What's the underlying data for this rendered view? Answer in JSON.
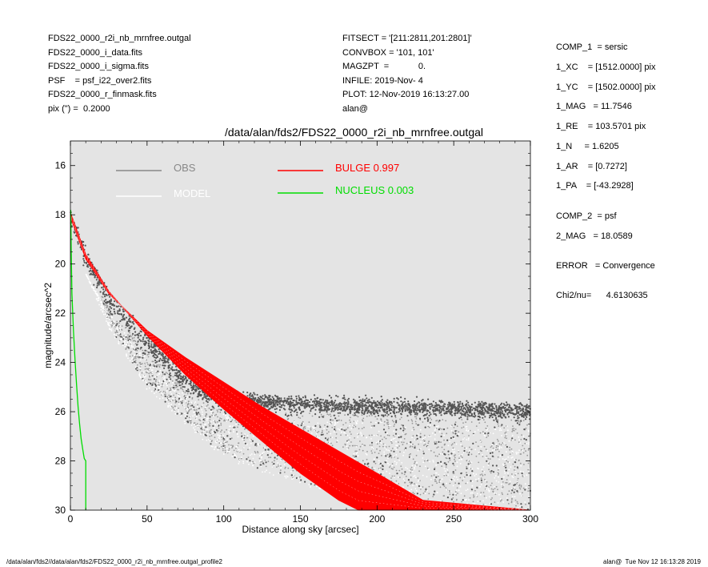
{
  "header_left": [
    "FDS22_0000_r2i_nb_mrnfree.outgal",
    "FDS22_0000_i_data.fits",
    "FDS22_0000_i_sigma.fits",
    "PSF    = psf_i22_over2.fits",
    "FDS22_0000_r_finmask.fits",
    "pix (\") =  0.2000"
  ],
  "header_mid": [
    "FITSECT = '[211:2811,201:2801]'",
    "CONVBOX = '101, 101'",
    "MAGZPT  =            0.",
    "INFILE: 2019-Nov- 4",
    "PLOT: 12-Nov-2019 16:13:27.00",
    "alan@"
  ],
  "right_params": {
    "comp1": "COMP_1  = sersic",
    "xc": "1_XC    = [1512.0000] pix",
    "yc": "1_YC    = [1502.0000] pix",
    "mag": "1_MAG   = 11.7546",
    "re": "1_RE    = 103.5701 pix",
    "n": "1_N     = 1.6205",
    "ar": "1_AR    = [0.7272]",
    "pa": "1_PA    = [-43.2928]",
    "comp2": "COMP_2  = psf",
    "mag2": "2_MAG   = 18.0589",
    "error": "ERROR   = Convergence",
    "chi2": "Chi2/nu=      4.6130635"
  },
  "footer_left": "/data/alan/fds2//data/alan/fds2/FDS22_0000_r2i_nb_mrnfree.outgal_profile2",
  "footer_right": "alan@  Tue Nov 12 16:13:28 2019",
  "colors": {
    "plot_bg": "#e4e4e4",
    "obs": "#555555",
    "obs_light": "#999999",
    "model": "#ffffff",
    "bulge": "#ff0000",
    "nucleus": "#00dd00"
  },
  "chart_data": {
    "type": "scatter",
    "title": "/data/alan/fds2/FDS22_0000_r2i_nb_mrnfree.outgal",
    "xlabel": "Distance along sky [arcsec]",
    "ylabel": "magnitude/arcsec^2",
    "xlim": [
      0,
      300
    ],
    "ylim": [
      30,
      15
    ],
    "y_inverted": true,
    "xticks": [
      0,
      50,
      100,
      150,
      200,
      250,
      300
    ],
    "yticks": [
      16,
      18,
      20,
      22,
      24,
      26,
      28,
      30
    ],
    "legend": [
      {
        "name": "OBS",
        "color": "#888888"
      },
      {
        "name": "MODEL",
        "color": "#ffffff"
      },
      {
        "name": "BULGE  0.997",
        "color": "#ff0000"
      },
      {
        "name": "NUCLEUS  0.003",
        "color": "#00dd00"
      }
    ],
    "series": [
      {
        "name": "BULGE",
        "inner": {
          "x": [
            0,
            10,
            25,
            50,
            75,
            100,
            125,
            150,
            175,
            188
          ],
          "y": [
            17.9,
            19.6,
            21.1,
            22.9,
            24.5,
            25.9,
            27.2,
            28.5,
            29.6,
            30.0
          ]
        },
        "outer": {
          "x": [
            0,
            10,
            25,
            50,
            75,
            100,
            125,
            150,
            175,
            200,
            230,
            300
          ],
          "y": [
            18.1,
            19.8,
            21.2,
            22.7,
            23.8,
            24.8,
            25.8,
            26.7,
            27.6,
            28.5,
            29.6,
            30.0
          ]
        }
      },
      {
        "name": "NUCLEUS",
        "x": [
          0.2,
          0.5,
          1,
          2,
          3,
          4,
          5,
          6,
          7,
          8,
          9,
          10,
          10,
          10
        ],
        "y": [
          17.8,
          19.4,
          21.2,
          22.7,
          23.9,
          24.9,
          25.8,
          26.5,
          27.1,
          27.5,
          27.9,
          28.0,
          29,
          30
        ]
      },
      {
        "name": "OBS",
        "dense": {
          "x": [
            0,
            10,
            25,
            50,
            75,
            90,
            100,
            150,
            200,
            250,
            300
          ],
          "y": [
            18.0,
            19.8,
            21.4,
            23.2,
            24.7,
            25.3,
            25.5,
            25.7,
            25.8,
            25.9,
            26.0
          ]
        },
        "faint": {
          "x": [
            0,
            25,
            50,
            100,
            150,
            200,
            250,
            300
          ],
          "y": [
            18.3,
            22.0,
            24.5,
            27.3,
            28.4,
            28.9,
            29.3,
            29.5
          ]
        }
      }
    ]
  }
}
